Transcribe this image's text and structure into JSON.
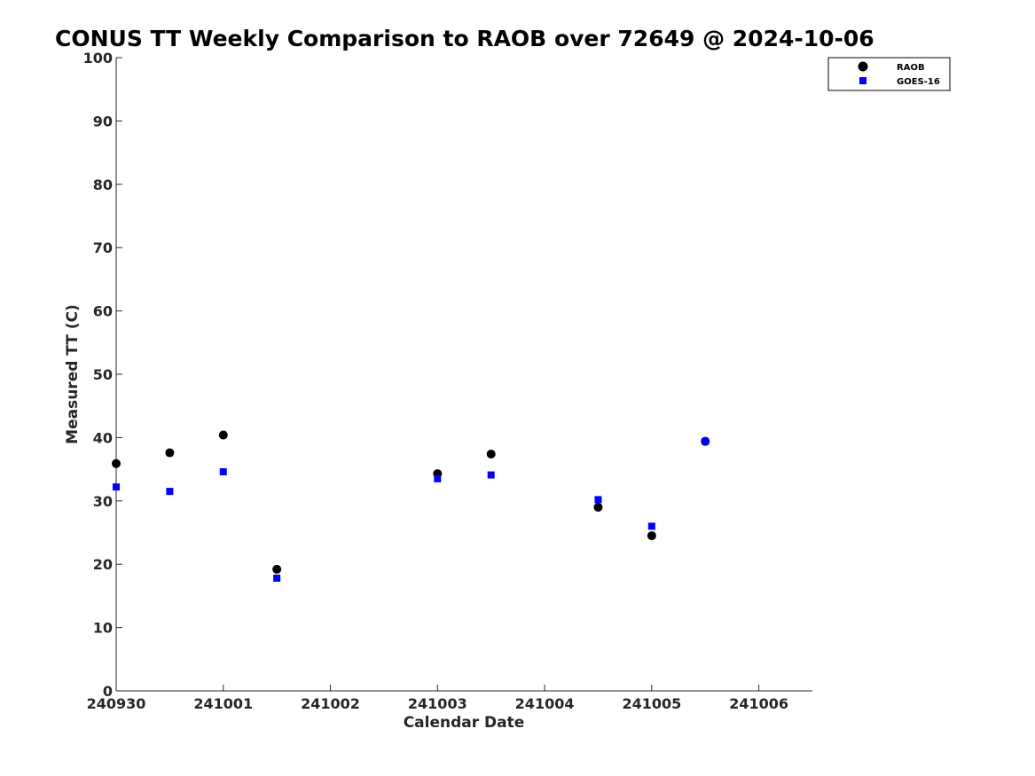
{
  "chart_data": {
    "type": "scatter",
    "title": "CONUS TT Weekly Comparison to RAOB over 72649 @ 2024-10-06",
    "xlabel": "Calendar Date",
    "ylabel": "Measured TT (C)",
    "x_ticks": [
      "240930",
      "241001",
      "241002",
      "241003",
      "241004",
      "241005",
      "241006"
    ],
    "xlim": [
      "2024-09-30 00:00",
      "2024-10-06 12:00"
    ],
    "ylim": [
      0,
      100
    ],
    "y_ticks": [
      0,
      10,
      20,
      30,
      40,
      50,
      60,
      70,
      80,
      90,
      100
    ],
    "grid": false,
    "legend_position": "top-right",
    "series": [
      {
        "name": "RAOB",
        "marker": "circle",
        "color": "#000000",
        "points": [
          {
            "x": "2024-09-30 00:00",
            "y": 35.9
          },
          {
            "x": "2024-09-30 12:00",
            "y": 37.6
          },
          {
            "x": "2024-10-01 00:00",
            "y": 40.4
          },
          {
            "x": "2024-10-01 12:00",
            "y": 19.2
          },
          {
            "x": "2024-10-03 00:00",
            "y": 34.3
          },
          {
            "x": "2024-10-03 12:00",
            "y": 37.4
          },
          {
            "x": "2024-10-04 12:00",
            "y": 29.0
          },
          {
            "x": "2024-10-05 00:00",
            "y": 24.5
          },
          {
            "x": "2024-10-05 12:00",
            "y": 39.4
          }
        ]
      },
      {
        "name": "GOES-16",
        "marker": "square",
        "color": "#0000ff",
        "points": [
          {
            "x": "2024-09-30 00:00",
            "y": 32.2
          },
          {
            "x": "2024-09-30 12:00",
            "y": 31.5
          },
          {
            "x": "2024-10-01 00:00",
            "y": 34.6
          },
          {
            "x": "2024-10-01 12:00",
            "y": 17.8
          },
          {
            "x": "2024-10-03 00:00",
            "y": 33.5
          },
          {
            "x": "2024-10-03 12:00",
            "y": 34.1
          },
          {
            "x": "2024-10-04 12:00",
            "y": 30.2
          },
          {
            "x": "2024-10-05 00:00",
            "y": 26.0
          },
          {
            "x": "2024-10-05 12:00",
            "y": 39.4
          }
        ]
      }
    ]
  }
}
